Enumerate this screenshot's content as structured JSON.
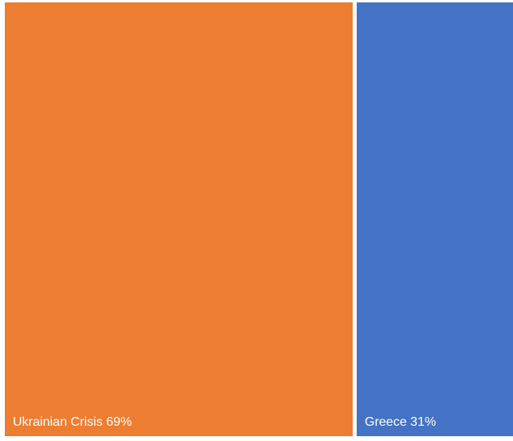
{
  "chart_data": {
    "type": "treemap",
    "categories": [
      "Ukrainian Crisis",
      "Greece"
    ],
    "values": [
      69,
      31
    ],
    "labels": [
      "Ukrainian Crisis 69%",
      "Greece 31%"
    ],
    "colors": [
      "#ED7D31",
      "#4472C4"
    ],
    "title": "",
    "legend": "none"
  }
}
